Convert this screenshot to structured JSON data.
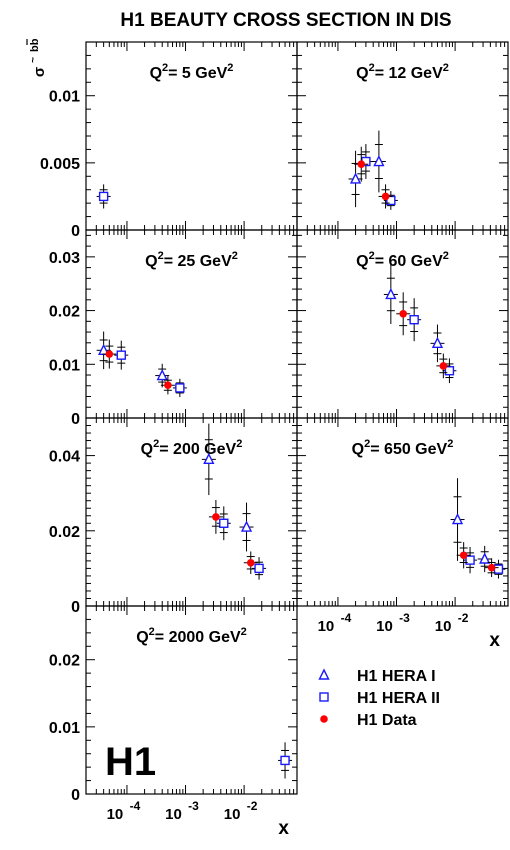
{
  "title": "H1 BEAUTY CROSS SECTION IN DIS",
  "ylabel": "σ̃ bb̄",
  "colors": {
    "hera1": "#1a1aff",
    "hera2": "#1a1aff",
    "data": "#ff0000",
    "errors": "#000000"
  },
  "legend": [
    {
      "label": "H1 HERA I",
      "marker": "triangle"
    },
    {
      "label": "H1 HERA II",
      "marker": "square"
    },
    {
      "label": "H1 Data",
      "marker": "circle"
    }
  ],
  "logo": "H1",
  "chart_data": [
    {
      "type": "scatter",
      "label": "Q²= 5 GeV²",
      "q2": "Q",
      "q2v": "= 5 GeV",
      "xscale": "log",
      "xlim": [
        2e-05,
        0.08
      ],
      "ylim": [
        0,
        0.014
      ],
      "yticks": [
        {
          "v": 0,
          "t": "0"
        },
        {
          "v": 0.005,
          "t": "0.005"
        },
        {
          "v": 0.01,
          "t": "0.01"
        }
      ],
      "series": [
        {
          "marker": "triangle",
          "points": []
        },
        {
          "marker": "square",
          "points": [
            {
              "x": 4e-05,
              "y": 0.0025,
              "e": 0.0009
            }
          ]
        },
        {
          "marker": "circle",
          "points": []
        }
      ]
    },
    {
      "type": "scatter",
      "label": "Q²= 12 GeV²",
      "q2": "Q",
      "q2v": "= 12 GeV",
      "xscale": "log",
      "xlim": [
        2e-05,
        0.08
      ],
      "ylim": [
        0,
        0.014
      ],
      "yticks": [],
      "series": [
        {
          "marker": "triangle",
          "points": [
            {
              "x": 0.0002,
              "y": 0.0038,
              "e": 0.0021
            },
            {
              "x": 0.0005,
              "y": 0.0051,
              "e": 0.0023
            }
          ]
        },
        {
          "marker": "square",
          "points": [
            {
              "x": 0.0003,
              "y": 0.0051,
              "e": 0.0013
            },
            {
              "x": 0.0008,
              "y": 0.0022,
              "e": 0.0007
            }
          ]
        },
        {
          "marker": "circle",
          "points": [
            {
              "x": 0.00025,
              "y": 0.0049,
              "e": 0.0013
            },
            {
              "x": 0.00065,
              "y": 0.0025,
              "e": 0.0009
            }
          ]
        }
      ]
    },
    {
      "type": "scatter",
      "label": "Q²= 25 GeV²",
      "q2": "Q",
      "q2v": "= 25 GeV",
      "xscale": "log",
      "xlim": [
        2e-05,
        0.08
      ],
      "ylim": [
        0,
        0.035
      ],
      "yticks": [
        {
          "v": 0,
          "t": "0"
        },
        {
          "v": 0.01,
          "t": "0.01"
        },
        {
          "v": 0.02,
          "t": "0.02"
        },
        {
          "v": 0.03,
          "t": "0.03"
        }
      ],
      "series": [
        {
          "marker": "triangle",
          "points": [
            {
              "x": 4e-05,
              "y": 0.0126,
              "e": 0.0035
            },
            {
              "x": 0.0004,
              "y": 0.0079,
              "e": 0.0022
            }
          ]
        },
        {
          "marker": "square",
          "points": [
            {
              "x": 8e-05,
              "y": 0.0117,
              "e": 0.0027
            },
            {
              "x": 0.0008,
              "y": 0.0056,
              "e": 0.0017
            }
          ]
        },
        {
          "marker": "circle",
          "points": [
            {
              "x": 5e-05,
              "y": 0.0119,
              "e": 0.0027
            },
            {
              "x": 0.0005,
              "y": 0.0061,
              "e": 0.0017
            }
          ]
        }
      ]
    },
    {
      "type": "scatter",
      "label": "Q²= 60 GeV²",
      "q2": "Q",
      "q2v": "= 60 GeV",
      "xscale": "log",
      "xlim": [
        2e-05,
        0.08
      ],
      "ylim": [
        0,
        0.035
      ],
      "yticks": [],
      "series": [
        {
          "marker": "triangle",
          "points": [
            {
              "x": 0.0008,
              "y": 0.023,
              "e": 0.0055
            },
            {
              "x": 0.005,
              "y": 0.0139,
              "e": 0.0035
            }
          ]
        },
        {
          "marker": "square",
          "points": [
            {
              "x": 0.002,
              "y": 0.0183,
              "e": 0.004
            },
            {
              "x": 0.008,
              "y": 0.0088,
              "e": 0.0023
            }
          ]
        },
        {
          "marker": "circle",
          "points": [
            {
              "x": 0.0013,
              "y": 0.0194,
              "e": 0.004
            },
            {
              "x": 0.0063,
              "y": 0.0097,
              "e": 0.0023
            }
          ]
        }
      ]
    },
    {
      "type": "scatter",
      "label": "Q²= 200 GeV²",
      "q2": "Q",
      "q2v": "= 200 GeV",
      "xscale": "log",
      "xlim": [
        2e-05,
        0.08
      ],
      "ylim": [
        0,
        0.05
      ],
      "yticks": [
        {
          "v": 0,
          "t": "0"
        },
        {
          "v": 0.02,
          "t": "0.02"
        },
        {
          "v": 0.04,
          "t": "0.04"
        }
      ],
      "series": [
        {
          "marker": "triangle",
          "points": [
            {
              "x": 0.0025,
              "y": 0.039,
              "e": 0.0095
            },
            {
              "x": 0.011,
              "y": 0.021,
              "e": 0.0065
            }
          ]
        },
        {
          "marker": "square",
          "points": [
            {
              "x": 0.0045,
              "y": 0.022,
              "e": 0.0045
            },
            {
              "x": 0.018,
              "y": 0.01,
              "e": 0.003
            }
          ]
        },
        {
          "marker": "circle",
          "points": [
            {
              "x": 0.0033,
              "y": 0.0237,
              "e": 0.0045
            },
            {
              "x": 0.013,
              "y": 0.0115,
              "e": 0.003
            }
          ]
        }
      ]
    },
    {
      "type": "scatter",
      "label": "Q²= 650 GeV²",
      "q2": "Q",
      "q2v": "= 650 GeV",
      "xscale": "log",
      "xlim": [
        2e-05,
        0.08
      ],
      "ylim": [
        0,
        0.05
      ],
      "yticks": [],
      "xticks": [
        {
          "v": 0.0001,
          "b": "10",
          "e": "-4"
        },
        {
          "v": 0.001,
          "b": "10",
          "e": "-3"
        },
        {
          "v": 0.01,
          "b": "10",
          "e": "-2"
        }
      ],
      "xlabel": "x",
      "series": [
        {
          "marker": "triangle",
          "points": [
            {
              "x": 0.011,
              "y": 0.023,
              "e": 0.011
            },
            {
              "x": 0.032,
              "y": 0.0125,
              "e": 0.0035
            }
          ]
        },
        {
          "marker": "square",
          "points": [
            {
              "x": 0.018,
              "y": 0.0122,
              "e": 0.0035
            },
            {
              "x": 0.055,
              "y": 0.0098,
              "e": 0.0025
            }
          ]
        },
        {
          "marker": "circle",
          "points": [
            {
              "x": 0.014,
              "y": 0.0135,
              "e": 0.0035
            },
            {
              "x": 0.042,
              "y": 0.0102,
              "e": 0.0025
            }
          ]
        }
      ]
    },
    {
      "type": "scatter",
      "label": "Q²= 2000 GeV²",
      "q2": "Q",
      "q2v": "= 2000 GeV",
      "xscale": "log",
      "xlim": [
        2e-05,
        0.08
      ],
      "ylim": [
        0,
        0.028
      ],
      "yticks": [
        {
          "v": 0,
          "t": "0"
        },
        {
          "v": 0.01,
          "t": "0.01"
        },
        {
          "v": 0.02,
          "t": "0.02"
        }
      ],
      "xticks": [
        {
          "v": 0.0001,
          "b": "10",
          "e": "-4"
        },
        {
          "v": 0.001,
          "b": "10",
          "e": "-3"
        },
        {
          "v": 0.01,
          "b": "10",
          "e": "-2"
        }
      ],
      "xlabel": "x",
      "series": [
        {
          "marker": "triangle",
          "points": []
        },
        {
          "marker": "square",
          "points": [
            {
              "x": 0.05,
              "y": 0.005,
              "e": 0.0027
            }
          ]
        },
        {
          "marker": "circle",
          "points": []
        }
      ]
    }
  ]
}
